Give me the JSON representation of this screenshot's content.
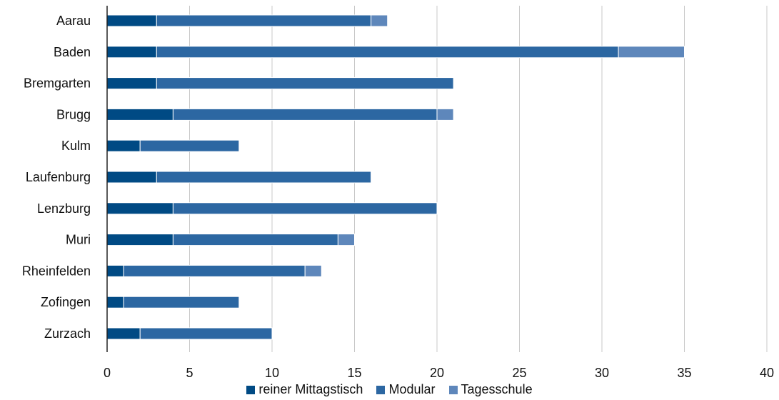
{
  "chart_data": {
    "type": "bar",
    "orientation": "horizontal",
    "stacked": true,
    "categories": [
      "Aarau",
      "Baden",
      "Bremgarten",
      "Brugg",
      "Kulm",
      "Laufenburg",
      "Lenzburg",
      "Muri",
      "Rheinfelden",
      "Zofingen",
      "Zurzach"
    ],
    "series": [
      {
        "name": "reiner Mittagstisch",
        "color": "#004a84",
        "values": [
          3,
          3,
          3,
          4,
          2,
          3,
          4,
          4,
          1,
          1,
          2
        ]
      },
      {
        "name": "Modular",
        "color": "#2c67a2",
        "values": [
          13,
          28,
          18,
          16,
          6,
          13,
          16,
          10,
          11,
          7,
          8
        ]
      },
      {
        "name": "Tagesschule",
        "color": "#5e87bb",
        "values": [
          1,
          4,
          0,
          1,
          0,
          0,
          0,
          1,
          1,
          0,
          0
        ]
      }
    ],
    "xlim": [
      0,
      40
    ],
    "xticks": [
      0,
      5,
      10,
      15,
      20,
      25,
      30,
      35,
      40
    ],
    "grid": "vertical",
    "legend_position": "bottom"
  }
}
